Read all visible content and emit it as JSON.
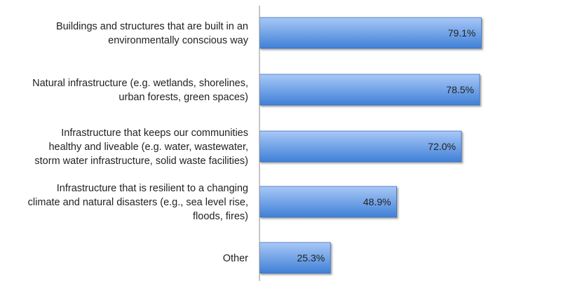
{
  "chart_data": {
    "type": "bar",
    "orientation": "horizontal",
    "title": "",
    "xlabel": "",
    "ylabel": "",
    "xlim": [
      0,
      100
    ],
    "grid": false,
    "legend": "none",
    "bar_color_top": "#a9c8f7",
    "bar_color_bottom": "#3f80d6",
    "bar_edge_color": "#3b6fbf",
    "categories": [
      [
        "Buildings and structures that are built in an",
        "environmentally conscious way"
      ],
      [
        "Natural infrastructure (e.g. wetlands, shorelines,",
        "urban forests, green spaces)"
      ],
      [
        "Infrastructure that keeps our communities",
        "healthy and liveable (e.g. water, wastewater,",
        "storm water infrastructure, solid waste facilities)"
      ],
      [
        "Infrastructure that is resilient to a changing",
        "climate and natural disasters (e.g., sea level rise,",
        "floods, fires)"
      ],
      [
        "Other"
      ]
    ],
    "values": [
      79.1,
      78.5,
      72.0,
      48.9,
      25.3
    ],
    "value_labels": [
      "79.1%",
      "78.5%",
      "72.0%",
      "48.9%",
      "25.3%"
    ]
  }
}
